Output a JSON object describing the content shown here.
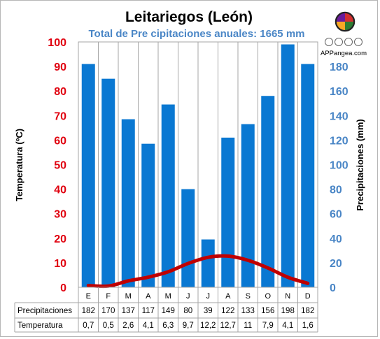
{
  "chart_data": {
    "type": "bar+line",
    "title": "Leitariegos (León)",
    "subtitle": "Total de Pre cipitaciones anuales: 1665 mm",
    "categories": [
      "E",
      "F",
      "M",
      "A",
      "M",
      "J",
      "J",
      "A",
      "S",
      "O",
      "N",
      "D"
    ],
    "left_axis": {
      "label": "Temperatura (ºC)",
      "ylim": [
        0,
        100
      ],
      "ticks": [
        0,
        10,
        20,
        30,
        40,
        50,
        60,
        70,
        80,
        90,
        100
      ]
    },
    "right_axis": {
      "label": "Precipitaciones (mm)",
      "ylim": [
        0,
        200
      ],
      "ticks": [
        0,
        20,
        40,
        60,
        80,
        100,
        120,
        140,
        160,
        180
      ]
    },
    "series": [
      {
        "name": "Precipitaciones",
        "type": "bar",
        "axis": "right",
        "color": "#0a78d2",
        "values": [
          182,
          170,
          137,
          117,
          149,
          80,
          39,
          122,
          133,
          156,
          198,
          182
        ],
        "labels": [
          "182",
          "170",
          "137",
          "117",
          "149",
          "80",
          "39",
          "122",
          "133",
          "156",
          "198",
          "182"
        ]
      },
      {
        "name": "Temperatura",
        "type": "line",
        "axis": "left",
        "color": "#c00000",
        "values": [
          0.7,
          0.5,
          2.6,
          4.1,
          6.3,
          9.7,
          12.2,
          12.7,
          11,
          7.9,
          4.1,
          1.6
        ],
        "labels": [
          "0,7",
          "0,5",
          "2,6",
          "4,1",
          "6,3",
          "9,7",
          "12,2",
          "12,7",
          "11",
          "7,9",
          "4,1",
          "1,6"
        ]
      }
    ],
    "grid": "vertical",
    "colors": {
      "temp_axis": "#e0000f",
      "precip_axis": "#4a86c6",
      "bars": "#0a78d2",
      "line": "#c00000"
    }
  },
  "logo": {
    "text": "APPangea.com"
  }
}
